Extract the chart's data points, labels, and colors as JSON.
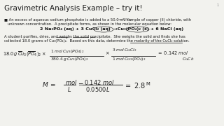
{
  "background_color": "#f2f2ee",
  "title": "Gravimetric Analysis Example – try it!",
  "title_fontsize": 7.5,
  "title_color": "#1a1a1a",
  "bullet_text1": "■ An excess of aqueous sodium phosphate is added to a 50.0 mL sample of copper (II) chloride, with",
  "bullet_text2": "   unknown concentration.  A precipitate forms, as shown in the molecular equation below:",
  "equation_text": "2 Na₃PO₄ (aq) + 3 CuCl₂ (aq)  →Cu₃(PO₄)₂ (s) + 6 NaCl (aq)",
  "body_text1": "A student purifies, dries, and weighs the solid precipitate.  She weighs the solid and finds she has",
  "body_text2": "collected 18.0 grams of Cu₃(PO₄)₂.  Based on this data, determine the molarity of the CuCl₂ solution.",
  "small_fontsize": 3.8,
  "eq_fontsize": 4.4,
  "page_number": "1",
  "hw_color": "#222222"
}
